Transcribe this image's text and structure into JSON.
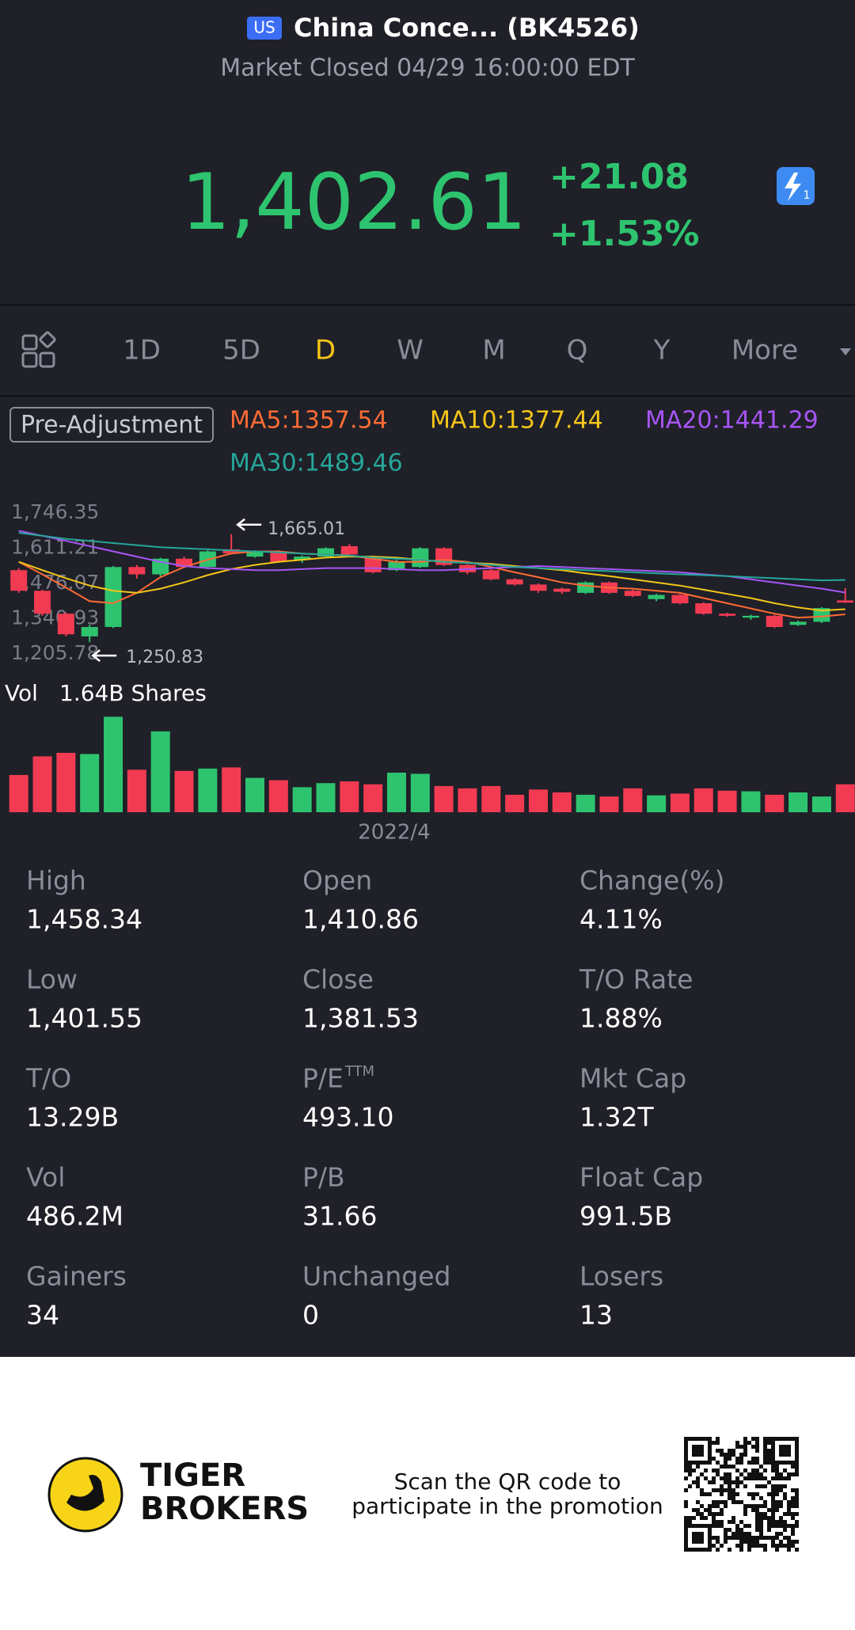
{
  "header": {
    "badge": "US",
    "title": "China Conce... (BK4526)",
    "status": "Market Closed 04/29 16:00:00 EDT",
    "price": "1,402.61",
    "change": "+21.08",
    "change_pct": "+1.53%",
    "icon_badge": "1"
  },
  "tabs": [
    "1D",
    "5D",
    "D",
    "W",
    "M",
    "Q",
    "Y",
    "More"
  ],
  "active_tab": 2,
  "chart_data": {
    "type": "candlestick",
    "adjust_label": "Pre-Adjustment",
    "up_color": "#2ec46f",
    "down_color": "#f23b52",
    "ylim": [
      1205.78,
      1746.35
    ],
    "yticks": [
      {
        "value": 1746.35,
        "label": "1,746.35"
      },
      {
        "value": 1611.21,
        "label": "1,611.21"
      },
      {
        "value": 1476.07,
        "label": "1,476.07"
      },
      {
        "value": 1340.93,
        "label": "1,340.93"
      },
      {
        "value": 1205.78,
        "label": "1,205.78"
      }
    ],
    "high_label": "1,665.01",
    "low_label": "1,250.83",
    "candles": {
      "open": [
        1527,
        1448,
        1360,
        1273,
        1309,
        1539,
        1511,
        1571,
        1539,
        1607,
        1579,
        1599,
        1567,
        1579,
        1619,
        1579,
        1527,
        1539,
        1611,
        1547,
        1527,
        1492,
        1472,
        1456,
        1440,
        1480,
        1448,
        1416,
        1432,
        1400,
        1360,
        1345,
        1352,
        1317,
        1329,
        1410.86
      ],
      "high": [
        1535,
        1452,
        1364,
        1317,
        1543,
        1547,
        1575,
        1579,
        1603,
        1665.01,
        1603,
        1603,
        1583,
        1615,
        1627,
        1583,
        1567,
        1615,
        1615,
        1551,
        1531,
        1496,
        1476,
        1460,
        1484,
        1484,
        1452,
        1436,
        1436,
        1404,
        1364,
        1356,
        1356,
        1333,
        1385,
        1458.34
      ],
      "low": [
        1440,
        1352,
        1273,
        1250.83,
        1305,
        1495,
        1503,
        1535,
        1531,
        1587,
        1575,
        1555,
        1555,
        1575,
        1583,
        1515,
        1523,
        1535,
        1543,
        1511,
        1488,
        1468,
        1440,
        1436,
        1436,
        1436,
        1424,
        1408,
        1396,
        1356,
        1348,
        1337,
        1305,
        1313,
        1325,
        1401.55
      ],
      "close": [
        1448,
        1360,
        1281,
        1309,
        1539,
        1511,
        1571,
        1539,
        1599,
        1591,
        1599,
        1559,
        1579,
        1611,
        1587,
        1519,
        1559,
        1611,
        1547,
        1519,
        1492,
        1472,
        1448,
        1444,
        1480,
        1440,
        1428,
        1432,
        1400,
        1360,
        1352,
        1352,
        1309,
        1329,
        1381.53,
        1402.61
      ]
    },
    "series": [
      {
        "name": "MA5:1357.54",
        "color": "#ff6b35",
        "values": [
          1559,
          1511,
          1460,
          1408,
          1400,
          1440,
          1500,
          1539,
          1567,
          1591,
          1599,
          1599,
          1591,
          1587,
          1583,
          1571,
          1559,
          1559,
          1567,
          1559,
          1539,
          1519,
          1500,
          1480,
          1468,
          1460,
          1456,
          1448,
          1440,
          1420,
          1400,
          1380,
          1360,
          1345,
          1349,
          1357.54
        ]
      },
      {
        "name": "MA10:1377.44",
        "color": "#f5c518",
        "values": [
          1559,
          1527,
          1496,
          1468,
          1448,
          1440,
          1456,
          1480,
          1508,
          1531,
          1547,
          1559,
          1567,
          1575,
          1579,
          1579,
          1575,
          1567,
          1559,
          1555,
          1551,
          1543,
          1535,
          1527,
          1515,
          1504,
          1492,
          1480,
          1468,
          1452,
          1436,
          1420,
          1400,
          1384,
          1372,
          1377.44
        ]
      },
      {
        "name": "MA20:1441.29",
        "color": "#a855f7",
        "values": [
          1678,
          1659,
          1639,
          1619,
          1599,
          1579,
          1559,
          1543,
          1535,
          1531,
          1527,
          1527,
          1531,
          1535,
          1535,
          1535,
          1531,
          1527,
          1527,
          1531,
          1535,
          1539,
          1543,
          1539,
          1535,
          1531,
          1527,
          1523,
          1519,
          1511,
          1504,
          1492,
          1480,
          1468,
          1456,
          1441.29
        ]
      },
      {
        "name": "MA30:1489.46",
        "color": "#26a69a",
        "values": [
          1670,
          1659,
          1647,
          1639,
          1631,
          1623,
          1615,
          1611,
          1607,
          1603,
          1599,
          1595,
          1591,
          1587,
          1583,
          1575,
          1571,
          1567,
          1559,
          1555,
          1547,
          1539,
          1535,
          1531,
          1527,
          1523,
          1519,
          1515,
          1511,
          1508,
          1504,
          1500,
          1496,
          1492,
          1488,
          1489.46
        ]
      }
    ],
    "volume": {
      "label": "Vol",
      "value_label": "1.64B Shares",
      "ylim": [
        0,
        1.7
      ],
      "values": [
        0.64,
        0.96,
        1.02,
        1.0,
        1.64,
        0.73,
        1.39,
        0.71,
        0.75,
        0.77,
        0.59,
        0.55,
        0.43,
        0.5,
        0.53,
        0.48,
        0.68,
        0.66,
        0.45,
        0.41,
        0.45,
        0.3,
        0.39,
        0.34,
        0.3,
        0.27,
        0.41,
        0.29,
        0.32,
        0.41,
        0.37,
        0.36,
        0.3,
        0.34,
        0.27,
        0.48
      ]
    },
    "x_label": "2022/4"
  },
  "stats": [
    {
      "label": "High",
      "value": "1,458.34"
    },
    {
      "label": "Open",
      "value": "1,410.86"
    },
    {
      "label": "Change(%)",
      "value": "4.11%"
    },
    {
      "label": "Low",
      "value": "1,401.55"
    },
    {
      "label": "Close",
      "value": "1,381.53"
    },
    {
      "label": "T/O Rate",
      "value": "1.88%"
    },
    {
      "label": "T/O",
      "value": "13.29B"
    },
    {
      "label": "P/E",
      "sup": "TTM",
      "value": "493.10"
    },
    {
      "label": "Mkt Cap",
      "value": "1.32T"
    },
    {
      "label": "Vol",
      "value": "486.2M"
    },
    {
      "label": "P/B",
      "value": "31.66"
    },
    {
      "label": "Float Cap",
      "value": "991.5B"
    },
    {
      "label": "Gainers",
      "value": "34"
    },
    {
      "label": "Unchanged",
      "value": "0"
    },
    {
      "label": "Losers",
      "value": "13"
    }
  ],
  "footer": {
    "brand": [
      "TIGER",
      "BROKERS"
    ],
    "promo": [
      "Scan the QR code to",
      "participate in the promotion"
    ]
  }
}
